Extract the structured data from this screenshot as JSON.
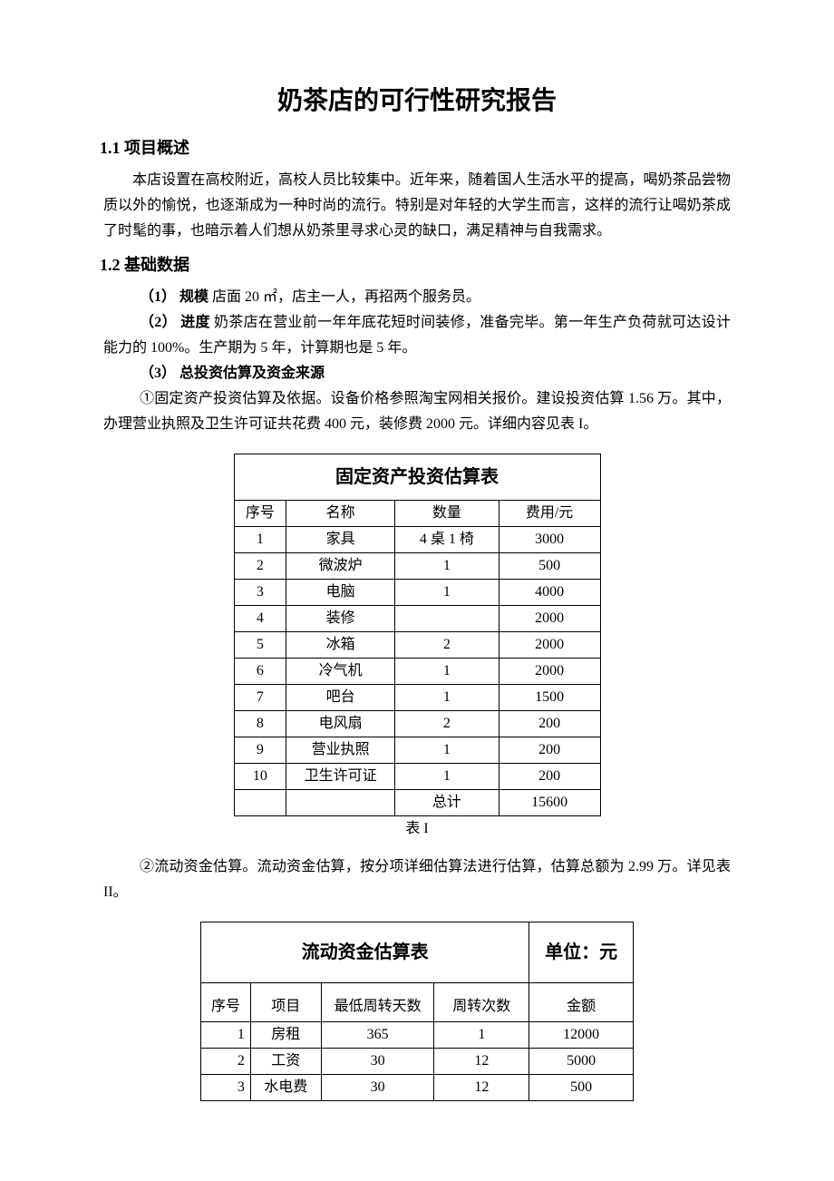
{
  "title": "奶茶店的可行性研究报告",
  "section1": {
    "heading": "1.1 项目概述",
    "body": "本店设置在高校附近，高校人员比较集中。近年来，随着国人生活水平的提高，喝奶茶品尝物质以外的愉悦，也逐渐成为一种时尚的流行。特别是对年轻的大学生而言，这样的流行让喝奶茶成了时髦的事，也暗示着人们想从奶茶里寻求心灵的缺口，满足精神与自我需求。"
  },
  "section2": {
    "heading": "1.2 基础数据",
    "items": [
      {
        "label": "（1） 规模",
        "text": "  店面 20 ㎡，店主一人，再招两个服务员。"
      },
      {
        "label": "（2） 进度",
        "text": "  奶茶店在营业前一年年底花短时间装修，准备完毕。第一年生产负荷就可达设计能力的 100%。生产期为 5 年，计算期也是 5 年。"
      },
      {
        "label": "（3） 总投资估算及资金来源",
        "text": ""
      }
    ],
    "sub1": "①固定资产投资估算及依据。设备价格参照淘宝网相关报价。建设投资估算 1.56 万。其中，办理营业执照及卫生许可证共花费 400 元，装修费 2000 元。详细内容见表 I。",
    "sub2": "②流动资金估算。流动资金估算，按分项详细估算法进行估算，估算总额为 2.99 万。详见表 II。"
  },
  "table1": {
    "title": "固定资产投资估算表",
    "caption": "表 I",
    "headers": [
      "序号",
      "名称",
      "数量",
      "费用/元"
    ],
    "total_label": "总计",
    "total_value": "15600",
    "rows": [
      [
        "1",
        "家具",
        "4 桌 1 椅",
        "3000"
      ],
      [
        "2",
        "微波炉",
        "1",
        "500"
      ],
      [
        "3",
        "电脑",
        "1",
        "4000"
      ],
      [
        "4",
        "装修",
        "",
        "2000"
      ],
      [
        "5",
        "冰箱",
        "2",
        "2000"
      ],
      [
        "6",
        "冷气机",
        "1",
        "2000"
      ],
      [
        "7",
        "吧台",
        "1",
        "1500"
      ],
      [
        "8",
        "电风扇",
        "2",
        "200"
      ],
      [
        "9",
        "营业执照",
        "1",
        "200"
      ],
      [
        "10",
        "卫生许可证",
        "1",
        "200"
      ]
    ]
  },
  "table2": {
    "title": "流动资金估算表",
    "unit": "单位：元",
    "headers": [
      "序号",
      "项目",
      "最低周转天数",
      "周转次数",
      "金额"
    ],
    "rows": [
      [
        "1",
        "房租",
        "365",
        "1",
        "12000"
      ],
      [
        "2",
        "工资",
        "30",
        "12",
        "5000"
      ],
      [
        "3",
        "水电费",
        "30",
        "12",
        "500"
      ]
    ]
  }
}
